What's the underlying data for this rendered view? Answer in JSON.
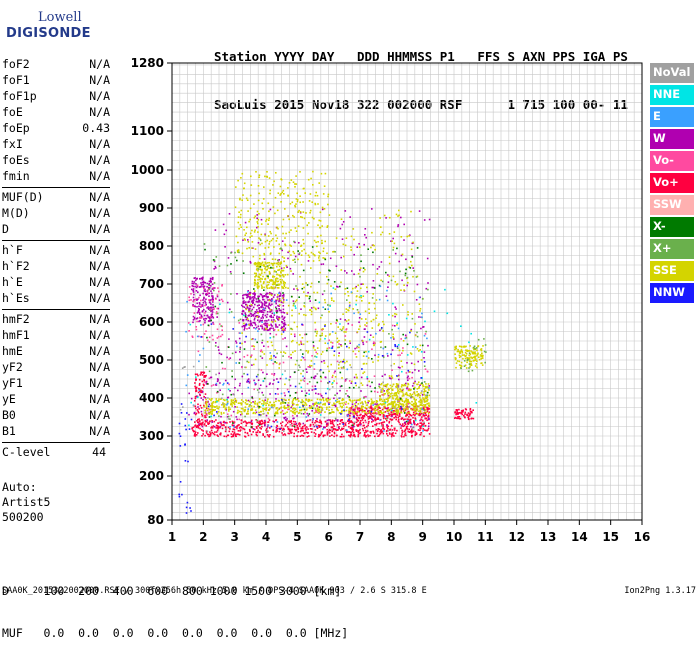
{
  "logo": {
    "line1": "Lowell",
    "line2": "DIGISONDE"
  },
  "header": {
    "line1": "Station YYYY DAY   DDD HHMMSS P1   FFS S AXN PPS IGA PS",
    "line2": "SaoLuis 2015 Nov18 322 002000 RSF      1 715 100 00- 11"
  },
  "parameters": [
    [
      {
        "name": "foF2",
        "value": "N/A"
      },
      {
        "name": "foF1",
        "value": "N/A"
      },
      {
        "name": "foF1p",
        "value": "N/A"
      },
      {
        "name": "foE",
        "value": "N/A"
      },
      {
        "name": "foEp",
        "value": "0.43"
      },
      {
        "name": "fxI",
        "value": "N/A"
      },
      {
        "name": "foEs",
        "value": "N/A"
      },
      {
        "name": "fmin",
        "value": "N/A"
      }
    ],
    [
      {
        "name": "MUF(D)",
        "value": "N/A"
      },
      {
        "name": "M(D)",
        "value": "N/A"
      },
      {
        "name": "D",
        "value": "N/A"
      }
    ],
    [
      {
        "name": "h`F",
        "value": "N/A"
      },
      {
        "name": "h`F2",
        "value": "N/A"
      },
      {
        "name": "h`E",
        "value": "N/A"
      },
      {
        "name": "h`Es",
        "value": "N/A"
      }
    ],
    [
      {
        "name": "hmF2",
        "value": "N/A"
      },
      {
        "name": "hmF1",
        "value": "N/A"
      },
      {
        "name": "hmE",
        "value": "N/A"
      },
      {
        "name": "yF2",
        "value": "N/A"
      },
      {
        "name": "yF1",
        "value": "N/A"
      },
      {
        "name": "yE",
        "value": "N/A"
      },
      {
        "name": "B0",
        "value": "N/A"
      },
      {
        "name": "B1",
        "value": "N/A"
      }
    ],
    [
      {
        "name": "C-level",
        "value": "44"
      }
    ]
  ],
  "auto": {
    "line1": "Auto:",
    "line2": "Artist5",
    "line3": "500200"
  },
  "bottom": {
    "d_line": "D     100  200  400  600  800 1000 1500 3000 [km]",
    "muf_line": "MUF   0.0  0.0  0.0  0.0  0.0  0.0  0.0  0.0 [MHz]"
  },
  "footer": {
    "left": "SAA0K_2015322002000.RSF / 300fx256h 50 kHz 5.0 km / DPS-4 SAA0K 903 / 2.6 S 315.8 E",
    "right": "Ion2Png 1.3.17"
  },
  "legend": [
    {
      "label": "NoVal",
      "color": "#a0a0a0"
    },
    {
      "label": "NNE",
      "color": "#00e5e5"
    },
    {
      "label": "E",
      "color": "#3aa0ff"
    },
    {
      "label": "W",
      "color": "#b000b0"
    },
    {
      "label": "Vo-",
      "color": "#ff4aa0"
    },
    {
      "label": "Vo+",
      "color": "#ff0040"
    },
    {
      "label": "SSW",
      "color": "#ffb0b0"
    },
    {
      "label": "X-",
      "color": "#007a00"
    },
    {
      "label": "X+",
      "color": "#6ab04c"
    },
    {
      "label": "SSE",
      "color": "#d4d400"
    },
    {
      "label": "NNW",
      "color": "#1a1aff"
    }
  ],
  "chart_data": {
    "type": "scatter",
    "x_ticks": [
      1,
      2,
      3,
      4,
      5,
      6,
      7,
      8,
      9,
      10,
      11,
      12,
      13,
      14,
      15,
      16
    ],
    "y_ticks": [
      80,
      200,
      300,
      400,
      500,
      600,
      700,
      800,
      900,
      1000,
      1100,
      1280
    ],
    "xlim": [
      1,
      16
    ],
    "ylim": [
      80,
      1280
    ],
    "y_scale": "nonlinear",
    "grid": true,
    "series": [
      {
        "name": "Vo+",
        "color": "#ff0040",
        "clusters": [
          {
            "x": [
              1.6,
              9.2
            ],
            "y": [
              300,
              345
            ],
            "density": 700
          },
          {
            "x": [
              6.6,
              9.2
            ],
            "y": [
              345,
              380
            ],
            "density": 260
          },
          {
            "x": [
              10.0,
              10.6
            ],
            "y": [
              345,
              375
            ],
            "density": 60
          },
          {
            "x": [
              1.7,
              2.1
            ],
            "y": [
              330,
              470
            ],
            "density": 90
          }
        ]
      },
      {
        "name": "W",
        "color": "#b000b0",
        "clusters": [
          {
            "x": [
              1.6,
              2.3
            ],
            "y": [
              600,
              720
            ],
            "density": 180
          },
          {
            "x": [
              3.2,
              4.6
            ],
            "y": [
              580,
              680
            ],
            "density": 320
          },
          {
            "x": [
              1.5,
              9.2
            ],
            "y": [
              320,
              460
            ],
            "density": 260
          },
          {
            "x": [
              2.3,
              9.2
            ],
            "y": [
              450,
              900
            ],
            "density": 260
          }
        ]
      },
      {
        "name": "SSE",
        "color": "#d4d400",
        "clusters": [
          {
            "x": [
              2.0,
              9.2
            ],
            "y": [
              360,
              400
            ],
            "density": 600
          },
          {
            "x": [
              7.6,
              9.2
            ],
            "y": [
              380,
              440
            ],
            "density": 220
          },
          {
            "x": [
              3.6,
              4.6
            ],
            "y": [
              690,
              760
            ],
            "density": 200
          },
          {
            "x": [
              3.0,
              6.0
            ],
            "y": [
              760,
              1000
            ],
            "density": 260
          },
          {
            "x": [
              4.5,
              9.0
            ],
            "y": [
              430,
              900
            ],
            "density": 260
          },
          {
            "x": [
              10.0,
              10.9
            ],
            "y": [
              480,
              540
            ],
            "density": 130
          },
          {
            "x": [
              3.2,
              7.5
            ],
            "y": [
              480,
              700
            ],
            "density": 160
          }
        ]
      },
      {
        "name": "Vo-",
        "color": "#ff4aa0",
        "clusters": [
          {
            "x": [
              1.8,
              9.2
            ],
            "y": [
              320,
              600
            ],
            "density": 140
          },
          {
            "x": [
              1.5,
              2.6
            ],
            "y": [
              560,
              700
            ],
            "density": 60
          }
        ]
      },
      {
        "name": "X+",
        "color": "#6ab04c",
        "clusters": [
          {
            "x": [
              2.0,
              9.2
            ],
            "y": [
              340,
              820
            ],
            "density": 130
          },
          {
            "x": [
              10.2,
              11.0
            ],
            "y": [
              470,
              560
            ],
            "density": 20
          }
        ]
      },
      {
        "name": "X-",
        "color": "#007a00",
        "clusters": [
          {
            "x": [
              2.0,
              9.2
            ],
            "y": [
              320,
              800
            ],
            "density": 110
          }
        ]
      },
      {
        "name": "E",
        "color": "#3aa0ff",
        "clusters": [
          {
            "x": [
              1.3,
              9.2
            ],
            "y": [
              310,
              700
            ],
            "density": 90
          }
        ]
      },
      {
        "name": "NNE",
        "color": "#00e5e5",
        "clusters": [
          {
            "x": [
              1.5,
              11.0
            ],
            "y": [
              320,
              700
            ],
            "density": 60
          }
        ]
      },
      {
        "name": "NNW",
        "color": "#1a1aff",
        "clusters": [
          {
            "x": [
              1.2,
              1.6
            ],
            "y": [
              100,
              400
            ],
            "density": 25
          },
          {
            "x": [
              1.8,
              9.2
            ],
            "y": [
              320,
              600
            ],
            "density": 60
          }
        ]
      },
      {
        "name": "NoVal",
        "color": "#a0a0a0",
        "clusters": [
          {
            "x": [
              1.2,
              9.2
            ],
            "y": [
              300,
              500
            ],
            "density": 60
          }
        ]
      }
    ]
  }
}
